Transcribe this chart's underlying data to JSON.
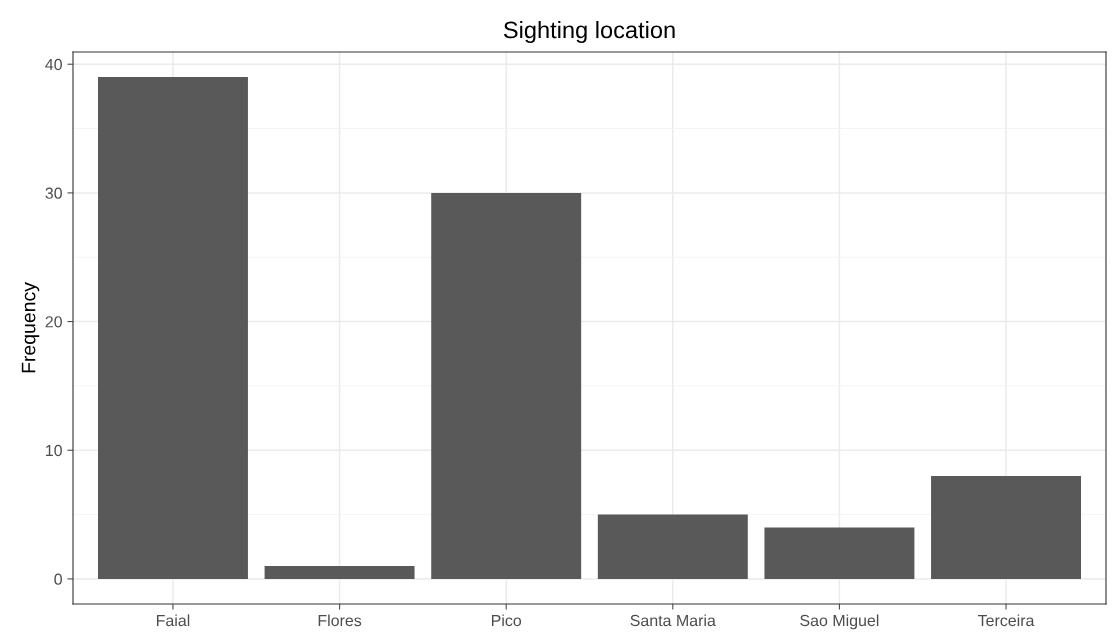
{
  "chart_data": {
    "type": "bar",
    "title": "Sighting location",
    "ylabel": "Frequency",
    "categories": [
      "Faial",
      "Flores",
      "Pico",
      "Santa Maria",
      "Sao Miguel",
      "Terceira"
    ],
    "values": [
      39,
      1,
      30,
      5,
      4,
      8
    ],
    "color": "#595959",
    "ylim": [
      -1.95,
      40.95
    ],
    "yticks": [
      0,
      10,
      20,
      30,
      40
    ],
    "grid": true
  }
}
